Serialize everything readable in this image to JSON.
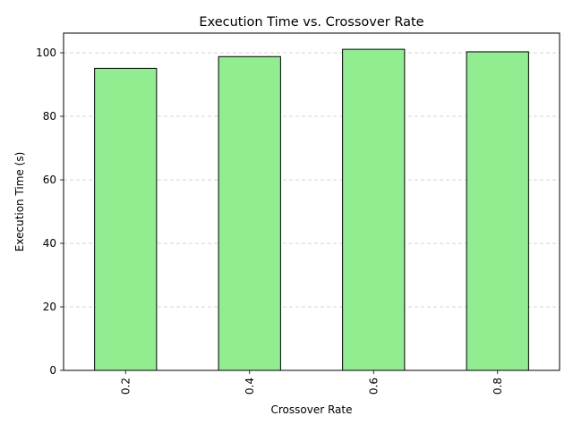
{
  "chart_data": {
    "type": "bar",
    "title": "Execution Time vs. Crossover Rate",
    "xlabel": "Crossover Rate",
    "ylabel": "Execution Time (s)",
    "categories": [
      "0.2",
      "0.4",
      "0.6",
      "0.8"
    ],
    "values": [
      95.1,
      98.8,
      101.1,
      100.3
    ],
    "ylim": [
      0,
      106.2
    ],
    "yticks": [
      0,
      20,
      40,
      60,
      80,
      100
    ],
    "grid": "y",
    "bar_color": "#90ee90",
    "edge_color": "#000000",
    "grid_color": "#c8c8c8"
  }
}
